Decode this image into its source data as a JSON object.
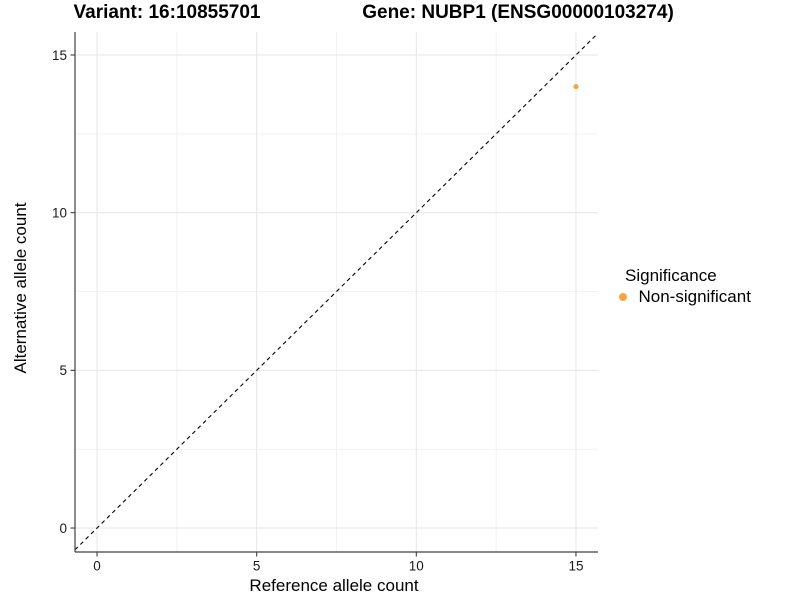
{
  "chart_data": {
    "type": "scatter",
    "title_left": "Variant: 16:10855701",
    "title_right": "Gene: NUBP1 (ENSG00000103274)",
    "xlabel": "Reference allele count",
    "ylabel": "Alternative allele count",
    "x_ticks": [
      0,
      5,
      10,
      15
    ],
    "y_ticks": [
      0,
      5,
      10,
      15
    ],
    "x_minor_ticks": [
      2.5,
      7.5,
      12.5
    ],
    "y_minor_ticks": [
      2.5,
      7.5,
      12.5
    ],
    "xlim": [
      -0.69,
      15.69
    ],
    "ylim": [
      -0.76,
      15.73
    ],
    "grid": "major and minor gridlines on white background",
    "series": [
      {
        "name": "Non-significant",
        "color": "#F9A242",
        "points": [
          {
            "x": 15,
            "y": 14
          }
        ]
      }
    ],
    "reference_line": {
      "kind": "identity y=x",
      "slope": 1,
      "intercept": 0,
      "style": "dashed",
      "color": "#000000"
    },
    "legend": {
      "title": "Significance",
      "position": "right",
      "entries": [
        {
          "label": "Non-significant",
          "color": "#F9A242"
        }
      ]
    },
    "style": {
      "axis_line_color": "#404040",
      "tick_label_color": "#1a1a1a",
      "grid_major_color": "#e6e6e6",
      "grid_minor_color": "#f2f2f2"
    }
  }
}
